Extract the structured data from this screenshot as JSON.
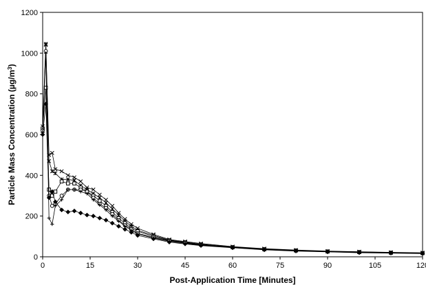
{
  "chart_data": {
    "type": "scatter",
    "title": "",
    "xlabel": "Post-Application Time [Minutes]",
    "ylabel_main": "Particle Mass Concentration (µg/m",
    "ylabel_sup": "3",
    "ylabel_close": ")",
    "xlim": [
      0,
      120
    ],
    "ylim": [
      0,
      1200
    ],
    "x_ticks": [
      "0",
      "15",
      "30",
      "45",
      "60",
      "75",
      "90",
      "105",
      "120"
    ],
    "y_ticks": [
      "0",
      "200",
      "400",
      "600",
      "800",
      "1000",
      "1200"
    ],
    "grid": false,
    "legend": "none",
    "series": [
      {
        "marker": "x-cross",
        "x": [
          0,
          1,
          2,
          3,
          4,
          6,
          8,
          10,
          12,
          14,
          16,
          18,
          20,
          22,
          24,
          26,
          28,
          30,
          35,
          40,
          45,
          50,
          60,
          70,
          80,
          90,
          100,
          110,
          120
        ],
        "y": [
          620,
          1040,
          500,
          510,
          430,
          420,
          400,
          390,
          370,
          340,
          330,
          305,
          280,
          250,
          215,
          185,
          160,
          140,
          110,
          85,
          75,
          65,
          50,
          40,
          33,
          28,
          25,
          22,
          20
        ]
      },
      {
        "marker": "asterisk",
        "x": [
          0,
          1,
          2,
          3,
          4,
          6,
          8,
          10,
          12,
          14,
          16,
          18,
          20,
          22,
          24,
          26,
          28,
          30,
          35,
          40,
          45,
          50,
          60,
          70,
          80,
          90,
          100,
          110,
          120
        ],
        "y": [
          640,
          1045,
          470,
          420,
          410,
          380,
          380,
          375,
          350,
          330,
          310,
          290,
          265,
          235,
          205,
          175,
          150,
          130,
          105,
          82,
          72,
          62,
          48,
          38,
          32,
          27,
          24,
          21,
          19
        ]
      },
      {
        "marker": "square",
        "x": [
          0,
          1,
          2,
          3,
          4,
          6,
          8,
          10,
          12,
          14,
          16,
          18,
          20,
          22,
          24,
          26,
          28,
          30,
          35,
          40,
          45,
          50,
          60,
          70,
          80,
          90,
          100,
          110,
          120
        ],
        "y": [
          630,
          830,
          330,
          300,
          320,
          370,
          360,
          360,
          340,
          320,
          300,
          275,
          250,
          220,
          190,
          165,
          140,
          125,
          100,
          80,
          70,
          60,
          47,
          37,
          31,
          26,
          23,
          20,
          18
        ]
      },
      {
        "marker": "circle",
        "x": [
          0,
          1,
          2,
          3,
          4,
          6,
          8,
          10,
          12,
          14,
          16,
          18,
          20,
          22,
          24,
          26,
          28,
          30,
          35,
          40,
          45,
          50,
          60,
          70,
          80,
          90,
          100,
          110,
          120
        ],
        "y": [
          620,
          1010,
          300,
          250,
          260,
          300,
          330,
          330,
          330,
          320,
          290,
          260,
          240,
          210,
          180,
          155,
          135,
          115,
          95,
          78,
          68,
          58,
          46,
          36,
          30,
          26,
          22,
          19,
          17
        ]
      },
      {
        "marker": "plus",
        "x": [
          0,
          1,
          2,
          3,
          4,
          6,
          8,
          10,
          12,
          14,
          16,
          18,
          20,
          22,
          24,
          26,
          28,
          30,
          35,
          40,
          45,
          50,
          60,
          70,
          80,
          90,
          100,
          110,
          120
        ],
        "y": [
          610,
          1000,
          190,
          160,
          250,
          280,
          330,
          330,
          320,
          310,
          280,
          255,
          230,
          200,
          175,
          150,
          130,
          112,
          92,
          76,
          66,
          57,
          45,
          35,
          29,
          25,
          21,
          19,
          17
        ]
      },
      {
        "marker": "diamond",
        "x": [
          0,
          1,
          2,
          3,
          4,
          6,
          8,
          10,
          12,
          14,
          16,
          18,
          20,
          22,
          24,
          26,
          28,
          30,
          35,
          40,
          45,
          50,
          60,
          70,
          80,
          90,
          100,
          110,
          120
        ],
        "y": [
          600,
          750,
          290,
          320,
          270,
          230,
          220,
          225,
          215,
          205,
          200,
          190,
          180,
          165,
          150,
          135,
          120,
          105,
          88,
          72,
          63,
          55,
          44,
          34,
          28,
          24,
          20,
          18,
          16
        ]
      }
    ]
  }
}
